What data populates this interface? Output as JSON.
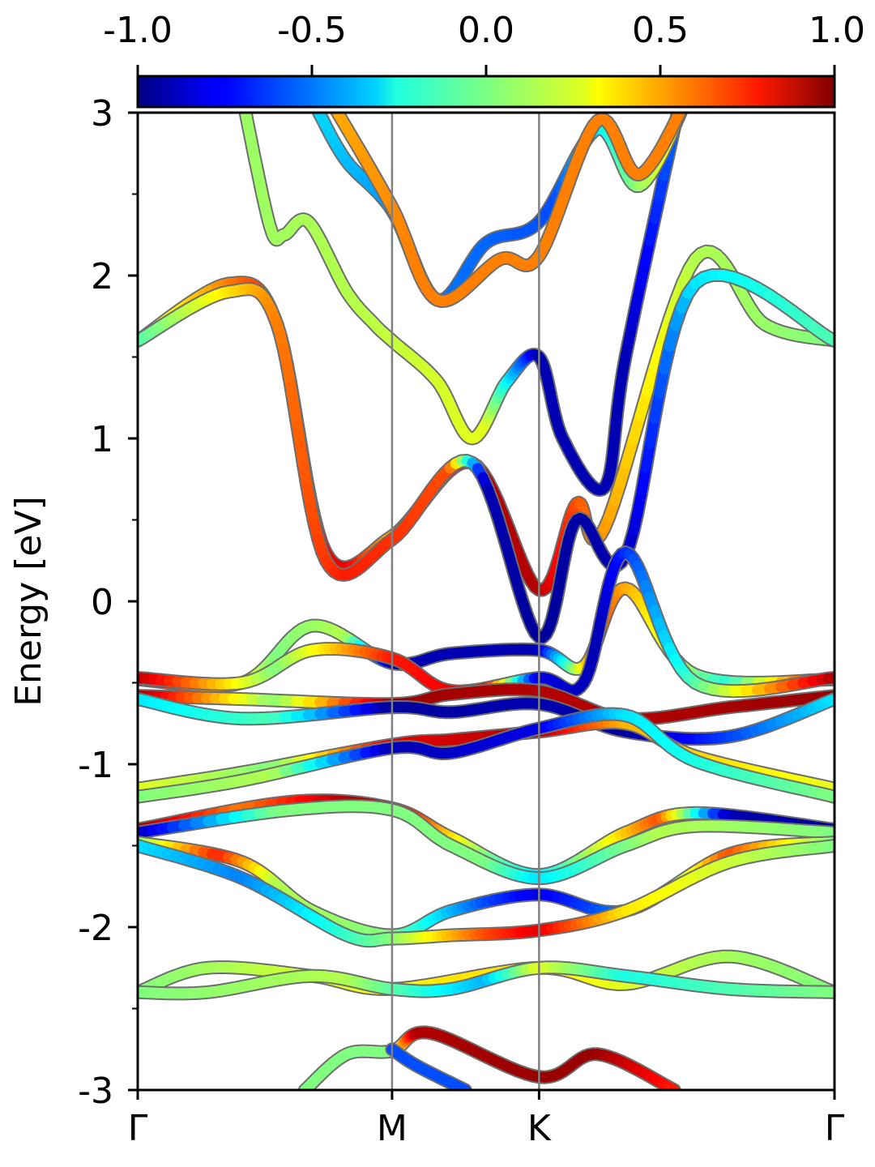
{
  "chart_data": {
    "type": "line",
    "xlabel": "",
    "ylabel": "Energy [eV]",
    "ylim": [
      -3,
      3
    ],
    "yticks": [
      "-3",
      "-2",
      "-1",
      "0",
      "1",
      "2",
      "3"
    ],
    "x_kpoints": [
      {
        "label": "Γ",
        "position": 0.0
      },
      {
        "label": "M",
        "position": 0.365
      },
      {
        "label": "K",
        "position": 0.576
      },
      {
        "label": "Γ",
        "position": 1.0
      }
    ],
    "colorbar": {
      "colormap": "jet",
      "range": [
        -1.0,
        1.0
      ],
      "tick_labels": [
        "-1.0",
        "-0.5",
        "0.0",
        "0.5",
        "1.0"
      ]
    },
    "series": [
      {
        "points": [
          [
            0.15,
            3.1
          ],
          [
            0.19,
            2.3
          ],
          [
            0.21,
            2.25
          ],
          [
            0.245,
            2.33
          ],
          [
            0.3,
            1.9
          ],
          [
            0.34,
            1.7
          ],
          [
            0.365,
            1.6
          ],
          [
            0.43,
            1.35
          ],
          [
            0.48,
            1.0
          ],
          [
            0.53,
            1.35
          ],
          [
            0.576,
            1.5
          ],
          [
            0.61,
            1.0
          ],
          [
            0.67,
            0.7
          ],
          [
            0.7,
            1.5
          ],
          [
            0.78,
            3.1
          ]
        ],
        "spin": [
          [
            0.0,
            0.0
          ],
          [
            0.3,
            0.1
          ],
          [
            0.5,
            0.2
          ],
          [
            0.576,
            -0.9
          ],
          [
            0.7,
            -0.9
          ],
          [
            0.78,
            -0.5
          ]
        ]
      },
      {
        "points": [
          [
            0.26,
            3.0
          ],
          [
            0.3,
            2.7
          ],
          [
            0.365,
            2.4
          ],
          [
            0.43,
            1.85
          ],
          [
            0.5,
            2.2
          ],
          [
            0.576,
            2.33
          ],
          [
            0.66,
            2.9
          ],
          [
            0.72,
            2.55
          ],
          [
            0.79,
            3.1
          ]
        ],
        "spin": [
          [
            0.0,
            0.0
          ],
          [
            0.4,
            -0.5
          ],
          [
            0.6,
            -0.6
          ],
          [
            0.79,
            0.4
          ]
        ]
      },
      {
        "points": [
          [
            0.28,
            3.05
          ],
          [
            0.365,
            2.42
          ],
          [
            0.43,
            1.85
          ],
          [
            0.52,
            2.1
          ],
          [
            0.576,
            2.12
          ],
          [
            0.66,
            2.95
          ],
          [
            0.72,
            2.62
          ],
          [
            0.79,
            3.1
          ]
        ],
        "spin": [
          [
            0.0,
            0.2
          ],
          [
            0.4,
            0.5
          ],
          [
            0.6,
            0.5
          ],
          [
            0.79,
            0.5
          ]
        ]
      },
      {
        "points": [
          [
            0.0,
            1.6
          ],
          [
            0.13,
            1.95
          ],
          [
            0.2,
            1.7
          ],
          [
            0.27,
            0.3
          ],
          [
            0.365,
            0.4
          ],
          [
            0.48,
            0.85
          ],
          [
            0.576,
            0.07
          ],
          [
            0.63,
            0.6
          ],
          [
            0.67,
            0.45
          ],
          [
            0.8,
            2.1
          ],
          [
            0.9,
            1.7
          ],
          [
            1.0,
            1.6
          ]
        ],
        "spin": [
          [
            0.0,
            0.1
          ],
          [
            0.2,
            0.7
          ],
          [
            0.3,
            0.8
          ],
          [
            0.365,
            0.4
          ],
          [
            0.5,
            0.9
          ],
          [
            0.576,
            0.9
          ],
          [
            0.65,
            0.5
          ],
          [
            0.8,
            0.1
          ],
          [
            1.0,
            0.0
          ]
        ]
      },
      {
        "points": [
          [
            0.0,
            1.6
          ],
          [
            0.13,
            1.9
          ],
          [
            0.2,
            1.7
          ],
          [
            0.27,
            0.25
          ],
          [
            0.365,
            0.38
          ],
          [
            0.48,
            0.85
          ],
          [
            0.576,
            -0.22
          ],
          [
            0.63,
            0.5
          ],
          [
            0.7,
            0.28
          ],
          [
            0.8,
            1.95
          ],
          [
            1.0,
            1.6
          ]
        ],
        "spin": [
          [
            0.0,
            -0.1
          ],
          [
            0.2,
            0.5
          ],
          [
            0.3,
            0.7
          ],
          [
            0.45,
            0.6
          ],
          [
            0.5,
            -0.9
          ],
          [
            0.576,
            -0.95
          ],
          [
            0.7,
            -0.9
          ],
          [
            0.8,
            -0.3
          ],
          [
            1.0,
            -0.1
          ]
        ]
      },
      {
        "points": [
          [
            0.0,
            -0.48
          ],
          [
            0.15,
            -0.5
          ],
          [
            0.25,
            -0.15
          ],
          [
            0.365,
            -0.38
          ],
          [
            0.45,
            -0.32
          ],
          [
            0.576,
            -0.3
          ],
          [
            0.64,
            -0.4
          ],
          [
            0.7,
            0.08
          ],
          [
            0.8,
            -0.45
          ],
          [
            1.0,
            -0.48
          ]
        ],
        "spin": [
          [
            0.0,
            0.9
          ],
          [
            0.2,
            0.0
          ],
          [
            0.3,
            0.1
          ],
          [
            0.365,
            -0.9
          ],
          [
            0.576,
            -0.9
          ],
          [
            0.66,
            0.6
          ],
          [
            0.85,
            -0.2
          ],
          [
            1.0,
            0.9
          ]
        ]
      },
      {
        "points": [
          [
            0.0,
            -0.47
          ],
          [
            0.15,
            -0.5
          ],
          [
            0.25,
            -0.3
          ],
          [
            0.365,
            -0.35
          ],
          [
            0.45,
            -0.55
          ],
          [
            0.576,
            -0.47
          ],
          [
            0.64,
            -0.5
          ],
          [
            0.7,
            0.3
          ],
          [
            0.8,
            -0.5
          ],
          [
            1.0,
            -0.47
          ]
        ],
        "spin": [
          [
            0.0,
            0.9
          ],
          [
            0.2,
            0.0
          ],
          [
            0.365,
            0.7
          ],
          [
            0.5,
            0.8
          ],
          [
            0.576,
            -0.8
          ],
          [
            0.66,
            -0.9
          ],
          [
            0.8,
            -0.1
          ],
          [
            1.0,
            0.9
          ]
        ]
      },
      {
        "points": [
          [
            0.0,
            -0.58
          ],
          [
            0.15,
            -0.6
          ],
          [
            0.365,
            -0.63
          ],
          [
            0.45,
            -0.57
          ],
          [
            0.576,
            -0.55
          ],
          [
            0.7,
            -0.72
          ],
          [
            0.85,
            -0.65
          ],
          [
            1.0,
            -0.58
          ]
        ],
        "spin": [
          [
            0.0,
            0.95
          ],
          [
            0.2,
            0.0
          ],
          [
            0.365,
            0.95
          ],
          [
            0.576,
            0.9
          ],
          [
            0.7,
            0.9
          ],
          [
            1.0,
            0.95
          ]
        ]
      },
      {
        "points": [
          [
            0.0,
            -0.6
          ],
          [
            0.15,
            -0.72
          ],
          [
            0.365,
            -0.65
          ],
          [
            0.45,
            -0.68
          ],
          [
            0.576,
            -0.63
          ],
          [
            0.7,
            -0.8
          ],
          [
            0.85,
            -0.83
          ],
          [
            1.0,
            -0.6
          ]
        ],
        "spin": [
          [
            0.0,
            -0.3
          ],
          [
            0.2,
            -0.1
          ],
          [
            0.365,
            -0.95
          ],
          [
            0.576,
            -0.9
          ],
          [
            0.7,
            -0.95
          ],
          [
            1.0,
            -0.3
          ]
        ]
      },
      {
        "points": [
          [
            0.0,
            -1.15
          ],
          [
            0.15,
            -1.05
          ],
          [
            0.365,
            -0.88
          ],
          [
            0.45,
            -0.85
          ],
          [
            0.576,
            -0.8
          ],
          [
            0.7,
            -0.75
          ],
          [
            0.8,
            -0.95
          ],
          [
            1.0,
            -1.15
          ]
        ],
        "spin": [
          [
            0.0,
            0.2
          ],
          [
            0.2,
            0.0
          ],
          [
            0.365,
            0.8
          ],
          [
            0.576,
            0.9
          ],
          [
            0.7,
            0.4
          ],
          [
            0.85,
            0.3
          ],
          [
            1.0,
            0.2
          ]
        ]
      },
      {
        "points": [
          [
            0.0,
            -1.2
          ],
          [
            0.15,
            -1.1
          ],
          [
            0.365,
            -0.9
          ],
          [
            0.45,
            -0.93
          ],
          [
            0.576,
            -0.78
          ],
          [
            0.7,
            -0.7
          ],
          [
            0.8,
            -0.98
          ],
          [
            1.0,
            -1.2
          ]
        ],
        "spin": [
          [
            0.0,
            0.0
          ],
          [
            0.2,
            0.1
          ],
          [
            0.365,
            -0.9
          ],
          [
            0.576,
            -0.8
          ],
          [
            0.7,
            -0.3
          ],
          [
            1.0,
            0.0
          ]
        ]
      },
      {
        "points": [
          [
            0.0,
            -1.4
          ],
          [
            0.22,
            -1.23
          ],
          [
            0.365,
            -1.27
          ],
          [
            0.45,
            -1.45
          ],
          [
            0.576,
            -1.68
          ],
          [
            0.7,
            -1.42
          ],
          [
            0.8,
            -1.3
          ],
          [
            1.0,
            -1.4
          ]
        ],
        "spin": [
          [
            0.0,
            0.95
          ],
          [
            0.15,
            0.5
          ],
          [
            0.3,
            0.9
          ],
          [
            0.365,
            0.9
          ],
          [
            0.5,
            0.0
          ],
          [
            0.576,
            -0.3
          ],
          [
            0.75,
            0.6
          ],
          [
            0.85,
            -0.9
          ],
          [
            1.0,
            -0.95
          ]
        ]
      },
      {
        "points": [
          [
            0.0,
            -1.42
          ],
          [
            0.22,
            -1.28
          ],
          [
            0.365,
            -1.28
          ],
          [
            0.45,
            -1.5
          ],
          [
            0.576,
            -1.7
          ],
          [
            0.7,
            -1.5
          ],
          [
            0.8,
            -1.38
          ],
          [
            1.0,
            -1.42
          ]
        ],
        "spin": [
          [
            0.0,
            -0.9
          ],
          [
            0.2,
            0.0
          ],
          [
            0.5,
            0.0
          ],
          [
            0.576,
            -0.3
          ],
          [
            0.75,
            0.1
          ],
          [
            1.0,
            0.0
          ]
        ]
      },
      {
        "points": [
          [
            0.0,
            -1.48
          ],
          [
            0.15,
            -1.6
          ],
          [
            0.25,
            -1.9
          ],
          [
            0.365,
            -2.05
          ],
          [
            0.45,
            -1.9
          ],
          [
            0.576,
            -1.8
          ],
          [
            0.7,
            -1.9
          ],
          [
            0.85,
            -1.55
          ],
          [
            1.0,
            -1.48
          ]
        ],
        "spin": [
          [
            0.0,
            0.0
          ],
          [
            0.12,
            0.7
          ],
          [
            0.2,
            0.1
          ],
          [
            0.365,
            0.0
          ],
          [
            0.5,
            -0.6
          ],
          [
            0.576,
            -0.8
          ],
          [
            0.7,
            -0.5
          ],
          [
            0.85,
            0.6
          ],
          [
            1.0,
            0.0
          ]
        ]
      },
      {
        "points": [
          [
            0.0,
            -1.5
          ],
          [
            0.15,
            -1.7
          ],
          [
            0.3,
            -2.05
          ],
          [
            0.365,
            -2.07
          ],
          [
            0.45,
            -2.05
          ],
          [
            0.576,
            -2.02
          ],
          [
            0.7,
            -1.9
          ],
          [
            0.85,
            -1.6
          ],
          [
            1.0,
            -1.5
          ]
        ],
        "spin": [
          [
            0.0,
            -0.3
          ],
          [
            0.15,
            -0.5
          ],
          [
            0.365,
            0.0
          ],
          [
            0.5,
            0.6
          ],
          [
            0.576,
            0.8
          ],
          [
            0.7,
            0.3
          ],
          [
            1.0,
            0.0
          ]
        ]
      },
      {
        "points": [
          [
            0.0,
            -2.4
          ],
          [
            0.1,
            -2.25
          ],
          [
            0.25,
            -2.3
          ],
          [
            0.365,
            -2.38
          ],
          [
            0.576,
            -2.25
          ],
          [
            0.7,
            -2.35
          ],
          [
            0.85,
            -2.18
          ],
          [
            1.0,
            -2.4
          ]
        ],
        "spin": [
          [
            0.0,
            0.0
          ],
          [
            0.3,
            0.2
          ],
          [
            0.45,
            0.3
          ],
          [
            0.576,
            0.3
          ],
          [
            0.8,
            0.1
          ],
          [
            1.0,
            0.0
          ]
        ]
      },
      {
        "points": [
          [
            0.0,
            -2.4
          ],
          [
            0.1,
            -2.4
          ],
          [
            0.25,
            -2.3
          ],
          [
            0.365,
            -2.38
          ],
          [
            0.45,
            -2.38
          ],
          [
            0.576,
            -2.25
          ],
          [
            0.7,
            -2.3
          ],
          [
            0.85,
            -2.38
          ],
          [
            1.0,
            -2.4
          ]
        ],
        "spin": [
          [
            0.0,
            0.0
          ],
          [
            0.3,
            0.1
          ],
          [
            0.5,
            -0.4
          ],
          [
            0.576,
            0.2
          ],
          [
            0.7,
            -0.2
          ],
          [
            1.0,
            0.0
          ]
        ]
      },
      {
        "points": [
          [
            0.24,
            -3.0
          ],
          [
            0.3,
            -2.78
          ],
          [
            0.365,
            -2.76
          ],
          [
            0.42,
            -2.65
          ],
          [
            0.576,
            -2.92
          ],
          [
            0.66,
            -2.78
          ],
          [
            0.77,
            -3.0
          ]
        ],
        "spin": [
          [
            0.24,
            0.0
          ],
          [
            0.365,
            0.0
          ],
          [
            0.4,
            0.9
          ],
          [
            0.576,
            0.95
          ],
          [
            0.66,
            0.95
          ],
          [
            0.77,
            0.7
          ]
        ]
      },
      {
        "points": [
          [
            0.365,
            -2.75
          ],
          [
            0.4,
            -2.85
          ],
          [
            0.47,
            -3.0
          ]
        ],
        "spin": [
          [
            0.365,
            -0.6
          ],
          [
            0.47,
            -0.6
          ]
        ]
      }
    ]
  }
}
